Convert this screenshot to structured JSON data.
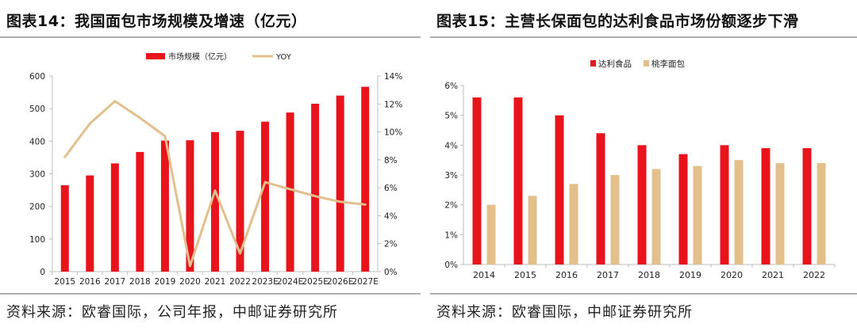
{
  "left": {
    "title": "图表14：我国面包市场规模及增速（亿元）",
    "source": "资料来源：欧睿国际，公司年报，中邮证券研究所"
  },
  "right": {
    "title": "图表15：主营长保面包的达利食品市场份额逐步下滑",
    "source": "资料来源：欧睿国际，中邮证券研究所"
  },
  "chart_data": [
    {
      "type": "bar",
      "title": "图表14：我国面包市场规模及增速（亿元）",
      "categories": [
        "2015",
        "2016",
        "2017",
        "2018",
        "2019",
        "2020",
        "2021",
        "2022",
        "2023E",
        "2024E",
        "2025E",
        "2026E",
        "2027E"
      ],
      "series": [
        {
          "name": "市场规模（亿元）",
          "type": "bar",
          "axis": "left",
          "color": "#e8131b",
          "values": [
            265,
            295,
            332,
            367,
            402,
            403,
            428,
            432,
            460,
            488,
            515,
            540,
            567
          ]
        },
        {
          "name": "YOY",
          "type": "line",
          "axis": "right",
          "color": "#e3bf8c",
          "values": [
            8.2,
            10.6,
            12.2,
            11.0,
            9.7,
            0.4,
            5.8,
            1.3,
            6.4,
            5.9,
            5.4,
            5.0,
            4.8
          ]
        }
      ],
      "ylim_left": [
        0,
        600
      ],
      "yticks_left": [
        "0",
        "100",
        "200",
        "300",
        "400",
        "500",
        "600"
      ],
      "ylim_right": [
        0,
        14
      ],
      "yticks_right": [
        "0%",
        "2%",
        "4%",
        "6%",
        "8%",
        "10%",
        "12%",
        "14%"
      ],
      "legend": [
        "市场规模（亿元）",
        "YOY"
      ],
      "legend_position": "top",
      "grid": false
    },
    {
      "type": "bar",
      "title": "图表15：主营长保面包的达利食品市场份额逐步下滑",
      "categories": [
        "2014",
        "2015",
        "2016",
        "2017",
        "2018",
        "2019",
        "2020",
        "2021",
        "2022"
      ],
      "series": [
        {
          "name": "达利食品",
          "color": "#e8131b",
          "values": [
            5.6,
            5.6,
            5.0,
            4.4,
            4.0,
            3.7,
            4.0,
            3.9,
            3.9
          ]
        },
        {
          "name": "桃李面包",
          "color": "#e3bf8c",
          "values": [
            2.0,
            2.3,
            2.7,
            3.0,
            3.2,
            3.3,
            3.5,
            3.4,
            3.4
          ]
        }
      ],
      "ylim": [
        0,
        6
      ],
      "yticks": [
        "0%",
        "1%",
        "2%",
        "3%",
        "4%",
        "5%",
        "6%"
      ],
      "legend": [
        "达利食品",
        "桃李面包"
      ],
      "legend_position": "top-left",
      "grid": false
    }
  ]
}
